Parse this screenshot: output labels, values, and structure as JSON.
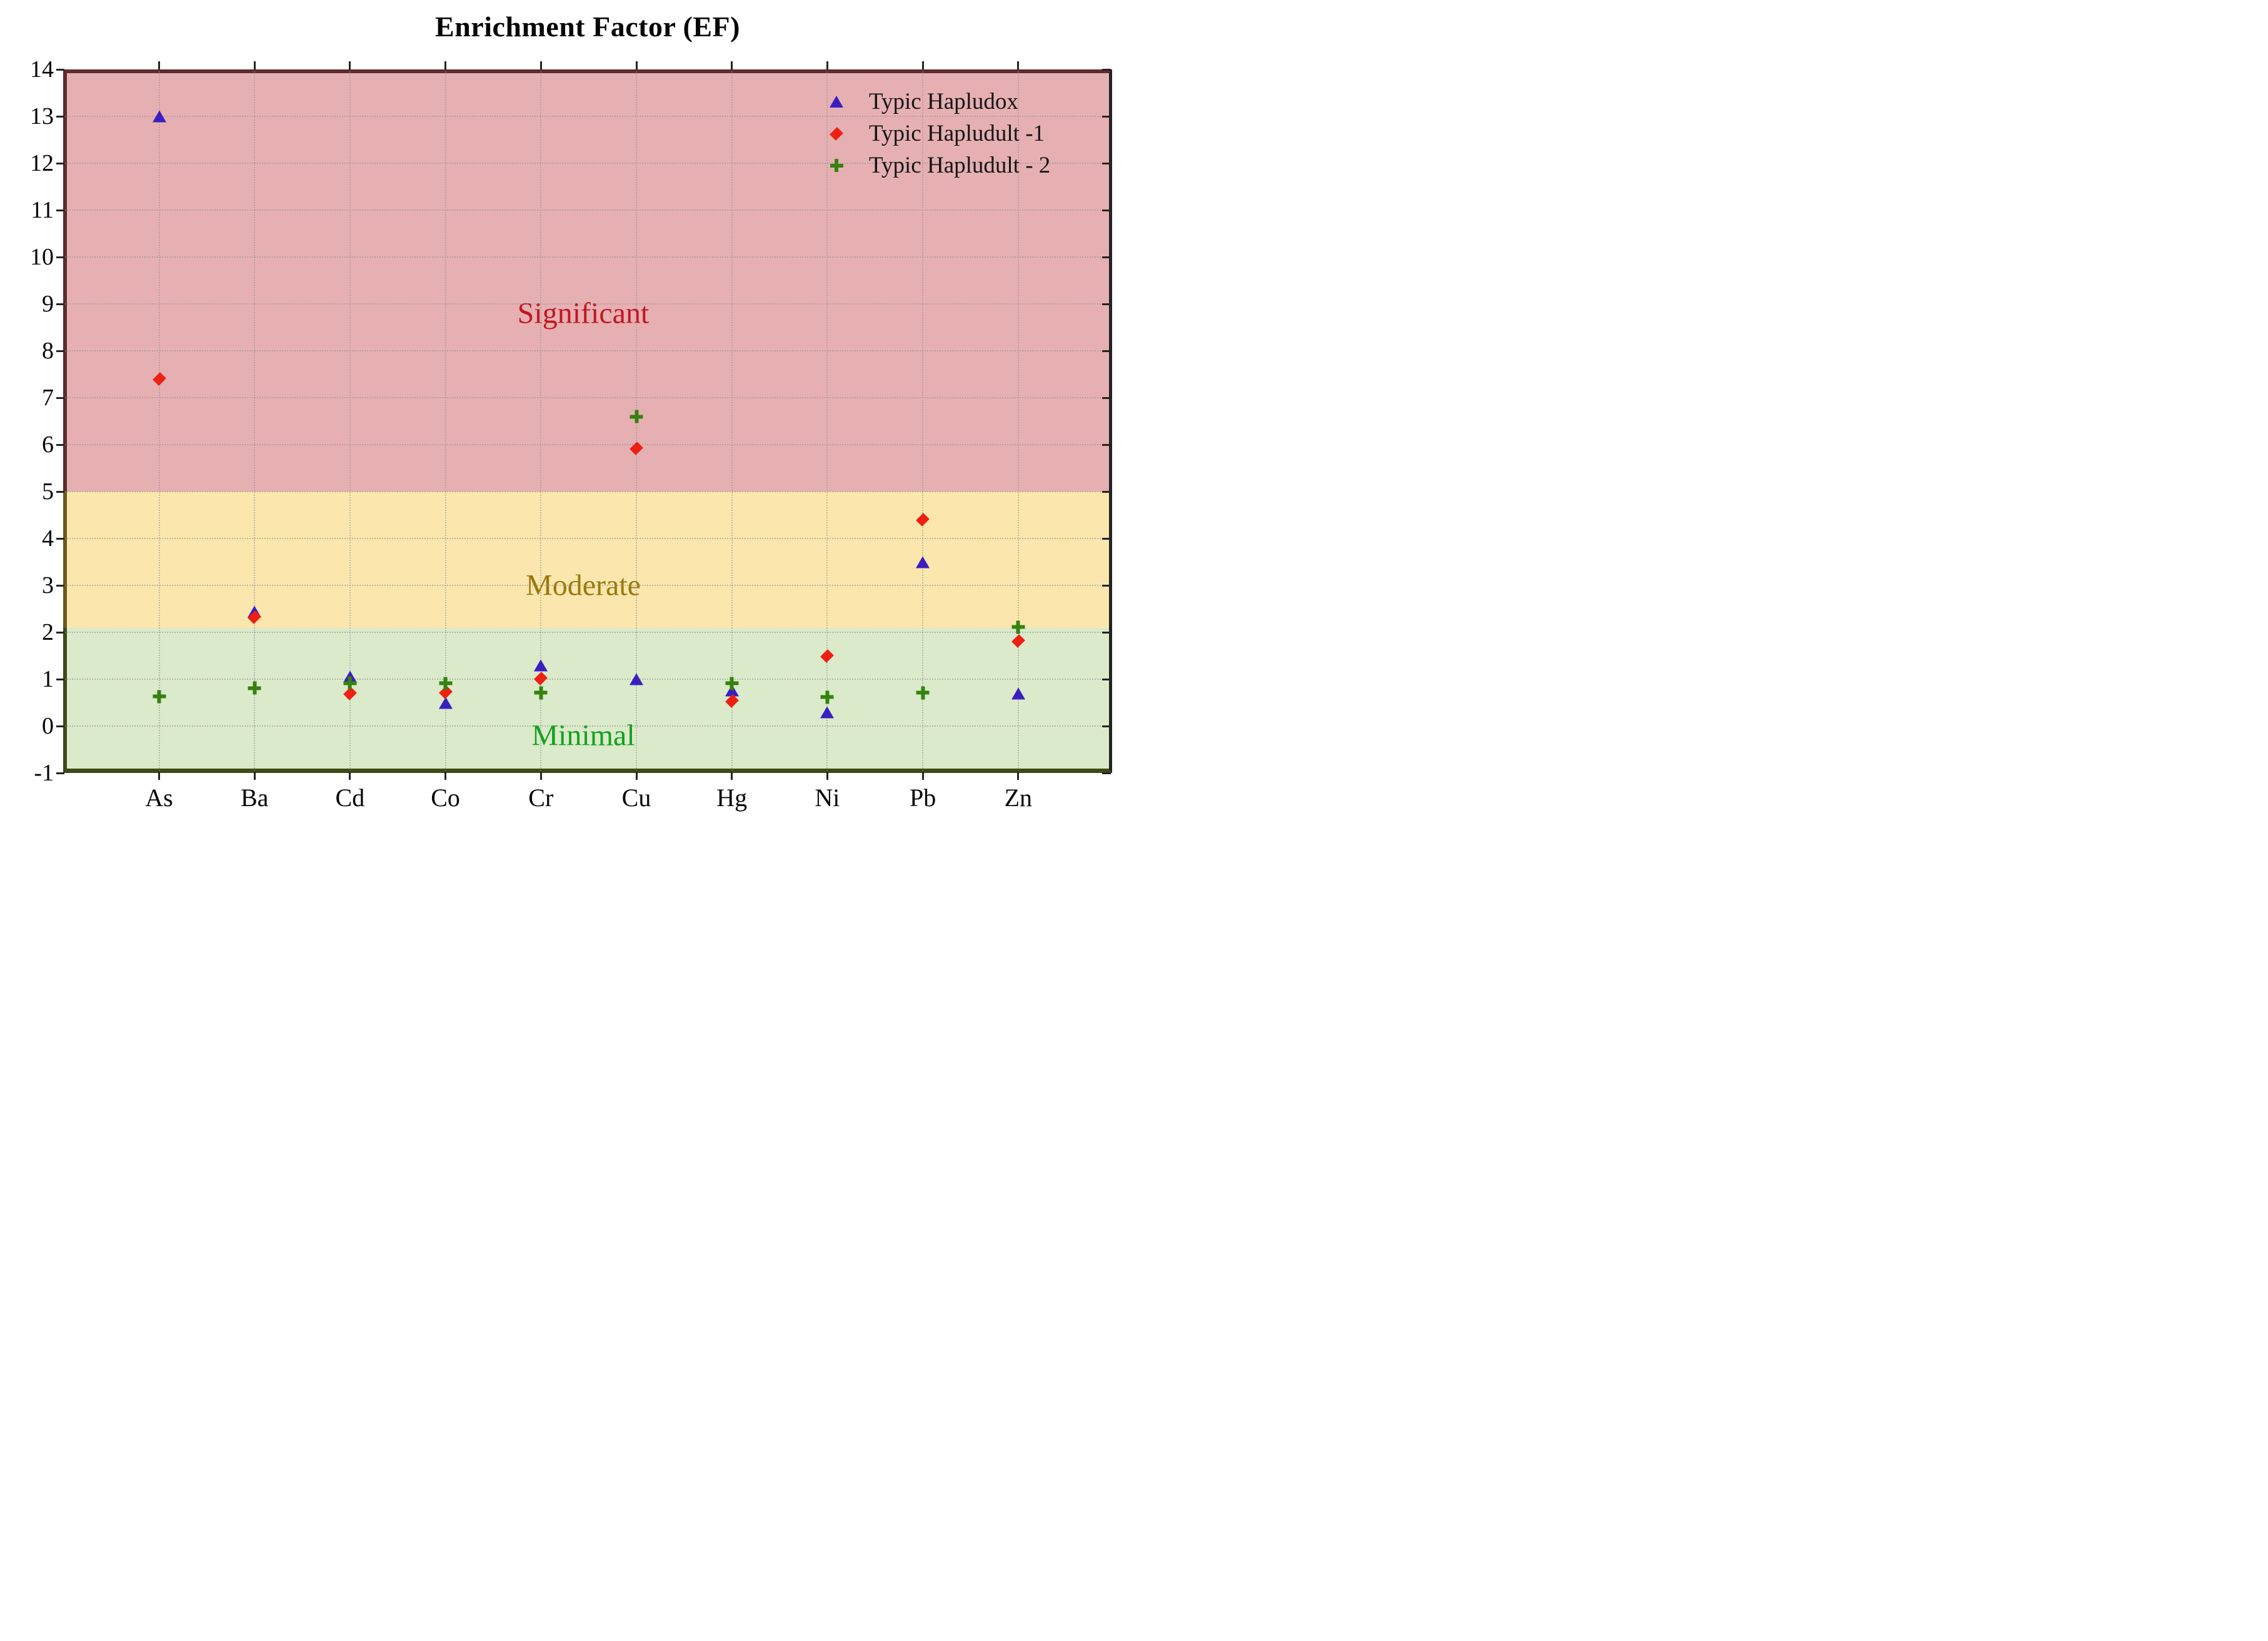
{
  "title": "Enrichment Factor (EF)",
  "chart_data": {
    "type": "scatter",
    "categories": [
      "As",
      "Ba",
      "Cd",
      "Co",
      "Cr",
      "Cu",
      "Hg",
      "Ni",
      "Pb",
      "Zn"
    ],
    "series": [
      {
        "name": "Typic Hapludox",
        "marker": "triangle",
        "color": "#3a1fc0",
        "values": [
          13.0,
          2.44,
          1.06,
          0.49,
          1.29,
          1.0,
          0.76,
          0.3,
          3.5,
          0.7
        ]
      },
      {
        "name": "Typic Hapludult -1",
        "marker": "diamond",
        "color": "#ee2012",
        "values": [
          7.4,
          2.32,
          0.7,
          0.72,
          1.01,
          5.92,
          0.53,
          1.5,
          4.4,
          1.81
        ]
      },
      {
        "name": "Typic Hapludult - 2",
        "marker": "plus",
        "color": "#35820f",
        "values": [
          0.63,
          0.81,
          0.92,
          0.91,
          0.71,
          6.6,
          0.91,
          0.62,
          0.71,
          2.11
        ]
      }
    ],
    "ylim": [
      -1,
      14
    ],
    "yticks": [
      -1,
      0,
      1,
      2,
      3,
      4,
      5,
      6,
      7,
      8,
      9,
      10,
      11,
      12,
      13,
      14
    ],
    "grid": true,
    "legend_position": "top-right-inside",
    "zones": [
      {
        "label": "Significant",
        "from": 5,
        "to": 14,
        "fill": "#e6b0b3",
        "edge": "#5c2b2b",
        "label_color": "#c2161f",
        "label_y": 8.8
      },
      {
        "label": "Moderate",
        "from": 2.1,
        "to": 5,
        "fill": "#fbe7ad",
        "edge": "#6b591d",
        "label_color": "#99790c",
        "label_y": 3.0
      },
      {
        "label": "Minimal",
        "from": -1,
        "to": 2.1,
        "fill": "#dbeacb",
        "edge": "#3c4a16",
        "label_color": "#12a21c",
        "label_y": -0.2
      }
    ]
  }
}
